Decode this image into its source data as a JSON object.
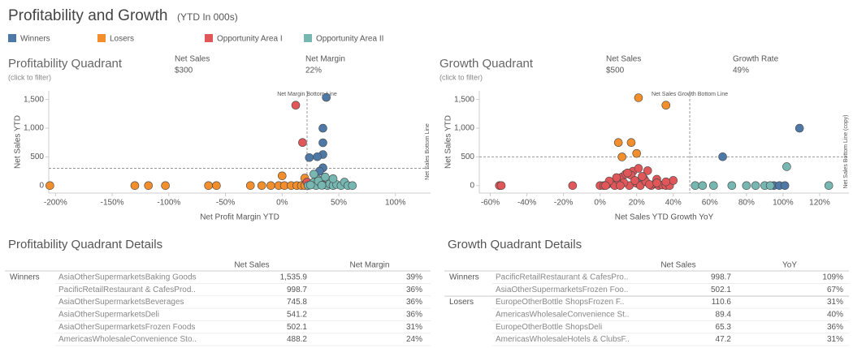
{
  "header": {
    "title": "Profitability and Growth",
    "subtitle": "(YTD In 000s)"
  },
  "chart_data": [
    {
      "type": "scatter",
      "title": "Profitability Quadrant",
      "subtitle": "(click to filter)",
      "stats": [
        {
          "label": "Net Sales",
          "value": "$300"
        },
        {
          "label": "Net Margin",
          "value": "22%"
        }
      ],
      "x_label": "Net Profit Margin YTD",
      "y_label": "Net Sales YTD",
      "xlim": [
        -206,
        131
      ],
      "ylim": [
        -130,
        1650
      ],
      "xticks": [
        {
          "value": -200,
          "label": "-200%"
        },
        {
          "value": -150,
          "label": "-150%"
        },
        {
          "value": -100,
          "label": "-100%"
        },
        {
          "value": -50,
          "label": "-50%"
        },
        {
          "value": 0,
          "label": "0%"
        },
        {
          "value": 50,
          "label": "50%"
        },
        {
          "value": 100,
          "label": "100%"
        }
      ],
      "yticks": [
        0,
        500,
        {
          "value": 1000,
          "label": "1,000"
        },
        {
          "value": 1500,
          "label": "1,500"
        }
      ],
      "ref_lines": [
        {
          "axis": "x",
          "value": 22,
          "label": "Net Margin Bottom Line"
        },
        {
          "axis": "y",
          "value": 300,
          "label": "Net Sales Bottom Line"
        }
      ],
      "series": [
        {
          "name": "Winners",
          "color": "#4e79a7",
          "x": [
            39,
            36,
            36,
            36,
            31,
            24,
            36,
            33
          ],
          "values": [
            1535.9,
            998.7,
            745.8,
            541.2,
            502.1,
            488.2,
            310,
            250
          ]
        },
        {
          "name": "Losers",
          "color": "#f28e2b",
          "x": [
            -205,
            -130,
            -118,
            -103,
            -65,
            -58,
            -28,
            -18,
            -10,
            -3,
            2,
            8,
            13,
            17,
            20,
            0,
            20
          ],
          "values": [
            0,
            0,
            0,
            0,
            0,
            0,
            0,
            0,
            0,
            0,
            0,
            0,
            0,
            0,
            0,
            170,
            130
          ]
        },
        {
          "name": "Opportunity Area I",
          "color": "#e15759",
          "x": [
            12,
            18,
            22
          ],
          "values": [
            1400,
            750,
            60
          ]
        },
        {
          "name": "Opportunity Area II",
          "color": "#76b7b2",
          "x": [
            23,
            26,
            28,
            30,
            32,
            34,
            36,
            38,
            40,
            42,
            45,
            48,
            52,
            55,
            58,
            62,
            28,
            32,
            45,
            25,
            35
          ],
          "values": [
            0,
            20,
            60,
            0,
            100,
            40,
            10,
            150,
            0,
            30,
            0,
            20,
            0,
            60,
            0,
            0,
            200,
            80,
            120,
            10,
            5
          ]
        }
      ]
    },
    {
      "type": "scatter",
      "title": "Growth Quadrant",
      "subtitle": "(click to filter)",
      "stats": [
        {
          "label": "Net Sales",
          "value": "$500"
        },
        {
          "label": "Growth Rate",
          "value": "49%"
        }
      ],
      "x_label": "Net Sales YTD Growth YoY",
      "y_label": "Net Sales YTD",
      "xlim": [
        -66,
        136
      ],
      "ylim": [
        -130,
        1650
      ],
      "xticks": [
        {
          "value": -60,
          "label": "-60%"
        },
        {
          "value": -40,
          "label": "-40%"
        },
        {
          "value": -20,
          "label": "-20%"
        },
        {
          "value": 0,
          "label": "0%"
        },
        {
          "value": 20,
          "label": "20%"
        },
        {
          "value": 40,
          "label": "40%"
        },
        {
          "value": 60,
          "label": "60%"
        },
        {
          "value": 80,
          "label": "80%"
        },
        {
          "value": 100,
          "label": "100%"
        },
        {
          "value": 120,
          "label": "120%"
        }
      ],
      "yticks": [
        0,
        500,
        {
          "value": 1000,
          "label": "1,000"
        },
        {
          "value": 1500,
          "label": "1,500"
        }
      ],
      "ref_lines": [
        {
          "axis": "x",
          "value": 49,
          "label": "Net Sales Growth Bottom Line"
        },
        {
          "axis": "y",
          "value": 500,
          "label": "Net Sales Bottom Line (copy)"
        }
      ],
      "series": [
        {
          "color": "#4e79a7",
          "x": [
            109,
            67,
            95,
            98,
            101
          ],
          "values": [
            998.7,
            502.1,
            0,
            0,
            0
          ]
        },
        {
          "color": "#f28e2b",
          "x": [
            21,
            36,
            10,
            17,
            12,
            20
          ],
          "values": [
            1530,
            1400,
            750,
            750,
            500,
            560
          ]
        },
        {
          "color": "#e15759",
          "x": [
            -55,
            -54,
            -15,
            0,
            2,
            4,
            6,
            8,
            10,
            12,
            14,
            16,
            18,
            20,
            22,
            24,
            26,
            28,
            30,
            32,
            34,
            36,
            38,
            5,
            9,
            13,
            17,
            21,
            25,
            3,
            11,
            19,
            15,
            23,
            27,
            31,
            40,
            36,
            31
          ],
          "values": [
            0,
            0,
            0,
            0,
            0,
            20,
            60,
            0,
            100,
            150,
            200,
            0,
            250,
            40,
            0,
            120,
            260,
            0,
            30,
            0,
            10,
            0,
            0,
            80,
            140,
            50,
            180,
            300,
            70,
            0,
            0,
            90,
            220,
            160,
            20,
            110.6,
            89.4,
            65.3,
            47.2
          ]
        },
        {
          "color": "#76b7b2",
          "x": [
            52,
            56,
            62,
            72,
            80,
            85,
            90,
            93,
            102,
            125
          ],
          "values": [
            0,
            0,
            0,
            0,
            0,
            0,
            0,
            0,
            330,
            0
          ]
        }
      ]
    }
  ],
  "tables": [
    {
      "title": "Profitability Quadrant Details",
      "columns": [
        "Net Sales",
        "Net Margin"
      ],
      "rows": [
        {
          "group": "Winners",
          "name": "AsiaOtherSupermarketsBaking Goods",
          "sales": "1,535.9",
          "rate": "39%"
        },
        {
          "name": "PacificRetailRestaurant & CafesProd..",
          "sales": "998.7",
          "rate": "36%"
        },
        {
          "name": "AsiaOtherSupermarketsBeverages",
          "sales": "745.8",
          "rate": "36%"
        },
        {
          "name": "AsiaOtherSupermarketsDeli",
          "sales": "541.2",
          "rate": "36%"
        },
        {
          "name": "AsiaOtherSupermarketsFrozen Foods",
          "sales": "502.1",
          "rate": "31%"
        },
        {
          "name": "AmericasWholesaleConvenience Sto..",
          "sales": "488.2",
          "rate": "24%"
        }
      ]
    },
    {
      "title": "Growth Quadrant Details",
      "columns": [
        "Net Sales",
        "YoY"
      ],
      "rows": [
        {
          "group": "Winners",
          "name": "PacificRetailRestaurant & CafesPro..",
          "sales": "998.7",
          "rate": "109%"
        },
        {
          "name": "AsiaOtherSupermarketsFrozen Foo..",
          "sales": "502.1",
          "rate": "67%"
        },
        {
          "group": "Losers",
          "name": "EuropeOtherBottle ShopsFrozen F..",
          "sales": "110.6",
          "rate": "31%"
        },
        {
          "name": "AmericasWholesaleConvenience St..",
          "sales": "89.4",
          "rate": "40%"
        },
        {
          "name": "EuropeOtherBottle ShopsDeli",
          "sales": "65.3",
          "rate": "36%"
        },
        {
          "name": "AmericasWholesaleHotels & ClubsF..",
          "sales": "47.2",
          "rate": "31%"
        }
      ]
    }
  ]
}
